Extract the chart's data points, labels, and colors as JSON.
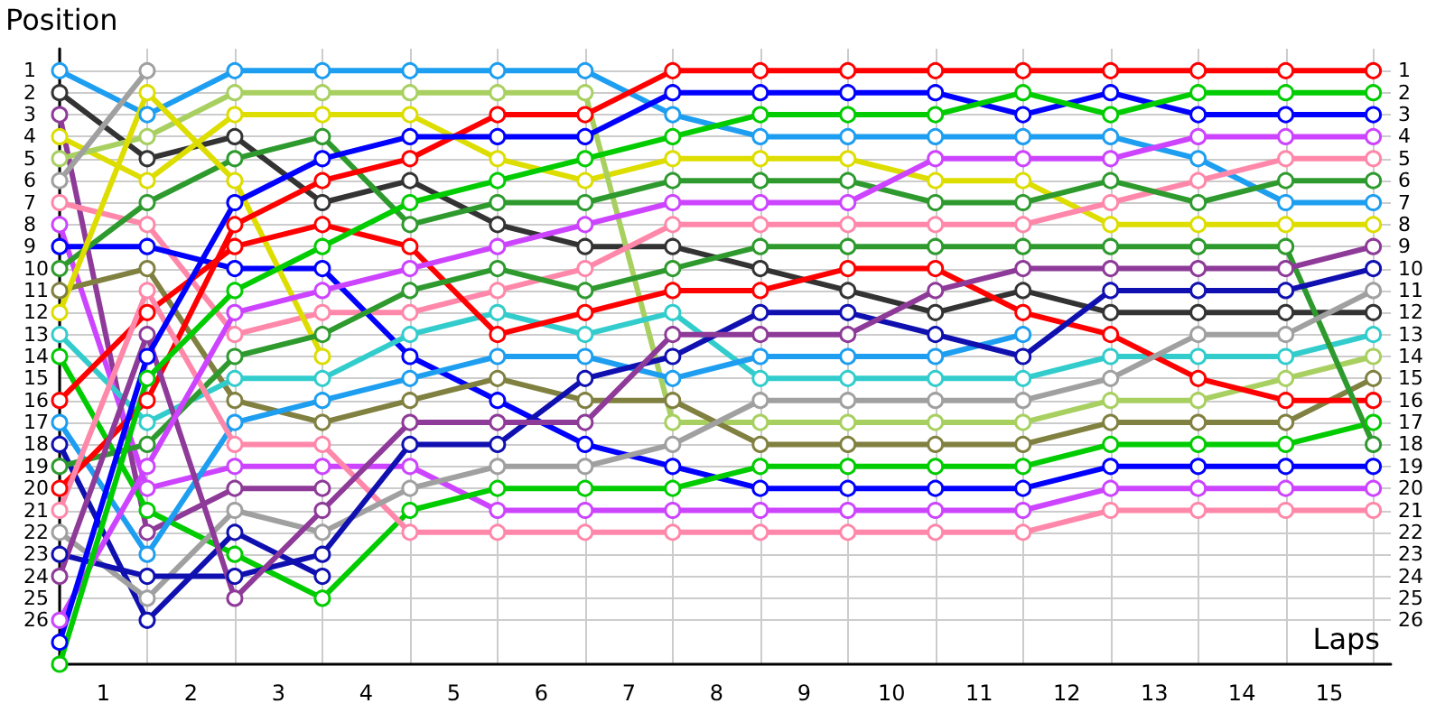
{
  "chart_data": {
    "type": "line",
    "xlabel": "Laps",
    "ylabel": "Position",
    "grid": true,
    "marker": "circle",
    "line_style": "solid",
    "x": [
      0,
      1,
      2,
      3,
      4,
      5,
      6,
      7,
      8,
      9,
      10,
      11,
      12,
      13,
      14,
      15
    ],
    "xlim": [
      0,
      15.2
    ],
    "xticks": [
      {
        "value": 0,
        "label": null
      },
      {
        "value": 0.5,
        "label": "1"
      },
      {
        "value": 1,
        "label": null
      },
      {
        "value": 1.5,
        "label": "2"
      },
      {
        "value": 2,
        "label": null
      },
      {
        "value": 2.5,
        "label": "3"
      },
      {
        "value": 3,
        "label": null
      },
      {
        "value": 3.5,
        "label": "4"
      },
      {
        "value": 4,
        "label": null
      },
      {
        "value": 4.5,
        "label": "5"
      },
      {
        "value": 5,
        "label": null
      },
      {
        "value": 5.5,
        "label": "6"
      },
      {
        "value": 6,
        "label": null
      },
      {
        "value": 6.5,
        "label": "7"
      },
      {
        "value": 7,
        "label": null
      },
      {
        "value": 7.5,
        "label": "8"
      },
      {
        "value": 8,
        "label": null
      },
      {
        "value": 8.5,
        "label": "9"
      },
      {
        "value": 9,
        "label": null
      },
      {
        "value": 9.5,
        "label": "10"
      },
      {
        "value": 10,
        "label": null
      },
      {
        "value": 10.5,
        "label": "11"
      },
      {
        "value": 11,
        "label": null
      },
      {
        "value": 11.5,
        "label": "12"
      },
      {
        "value": 12,
        "label": null
      },
      {
        "value": 12.5,
        "label": "13"
      },
      {
        "value": 13,
        "label": null
      },
      {
        "value": 13.5,
        "label": "14"
      },
      {
        "value": 14,
        "label": null
      },
      {
        "value": 14.5,
        "label": "15"
      },
      {
        "value": 15,
        "label": null
      }
    ],
    "ylim": [
      28,
      0
    ],
    "yticks": [
      1,
      2,
      3,
      4,
      5,
      6,
      7,
      8,
      9,
      10,
      11,
      12,
      13,
      14,
      15,
      16,
      17,
      18,
      19,
      20,
      21,
      22,
      23,
      24,
      25,
      26
    ],
    "y2lim": [
      28,
      0
    ],
    "y2ticks": [
      1,
      2,
      3,
      4,
      5,
      6,
      7,
      8,
      9,
      10,
      11,
      12,
      13,
      14,
      15,
      16,
      17,
      18,
      19,
      20,
      21,
      22,
      23,
      24,
      25,
      26
    ],
    "series": [
      {
        "color": "#1e9ef0",
        "values": [
          1,
          3,
          1,
          1,
          1,
          1,
          1,
          3,
          4,
          4,
          4,
          4,
          4,
          5,
          7,
          7
        ]
      },
      {
        "color": "#333333",
        "values": [
          2,
          5,
          4,
          7,
          6,
          8,
          9,
          9,
          10,
          11,
          12,
          11,
          12,
          12,
          12,
          12
        ]
      },
      {
        "color": "#8e3a98",
        "values": [
          3,
          22,
          20,
          20,
          null,
          null,
          null,
          null,
          null,
          null,
          null,
          null,
          null,
          null,
          null,
          null
        ]
      },
      {
        "color": "#dddd00",
        "values": [
          4,
          6,
          3,
          3,
          3,
          5,
          6,
          5,
          5,
          5,
          6,
          6,
          8,
          8,
          8,
          8
        ]
      },
      {
        "color": "#a8d060",
        "values": [
          5,
          4,
          2,
          2,
          2,
          2,
          2,
          17,
          17,
          17,
          17,
          17,
          16,
          16,
          15,
          14
        ]
      },
      {
        "color": "#a0a0a0",
        "values": [
          6,
          1,
          null,
          null,
          null,
          null,
          null,
          null,
          null,
          null,
          null,
          null,
          null,
          null,
          null,
          null
        ]
      },
      {
        "color": "#ff88aa",
        "values": [
          7,
          8,
          13,
          12,
          12,
          11,
          10,
          8,
          8,
          8,
          8,
          8,
          7,
          6,
          5,
          5
        ]
      },
      {
        "color": "#cc44ff",
        "values": [
          8,
          20,
          19,
          19,
          19,
          21,
          21,
          21,
          21,
          21,
          21,
          21,
          20,
          20,
          20,
          20
        ]
      },
      {
        "color": "#0000ff",
        "values": [
          9,
          9,
          10,
          10,
          14,
          16,
          18,
          19,
          20,
          20,
          20,
          20,
          19,
          19,
          19,
          19
        ]
      },
      {
        "color": "#2e9a2e",
        "values": [
          10,
          7,
          5,
          4,
          8,
          7,
          7,
          6,
          6,
          6,
          7,
          7,
          6,
          7,
          6,
          6
        ]
      },
      {
        "color": "#808040",
        "values": [
          11,
          10,
          16,
          17,
          16,
          15,
          16,
          16,
          18,
          18,
          18,
          18,
          17,
          17,
          17,
          15
        ]
      },
      {
        "color": "#dddd00",
        "values": [
          12,
          2,
          6,
          14,
          null,
          null,
          null,
          null,
          null,
          null,
          null,
          null,
          null,
          null,
          null,
          null
        ]
      },
      {
        "color": "#33cccc",
        "values": [
          13,
          17,
          15,
          15,
          13,
          12,
          13,
          12,
          15,
          15,
          15,
          15,
          14,
          14,
          14,
          13
        ]
      },
      {
        "color": "#00cc00",
        "values": [
          14,
          21,
          23,
          25,
          21,
          20,
          20,
          20,
          19,
          19,
          19,
          19,
          18,
          18,
          18,
          17
        ]
      },
      {
        "color": "#ff0000",
        "values": [
          16,
          12,
          9,
          8,
          9,
          13,
          12,
          11,
          11,
          10,
          10,
          12,
          13,
          15,
          16,
          16
        ]
      },
      {
        "color": "#1e9ef0",
        "values": [
          17,
          23,
          17,
          16,
          15,
          14,
          14,
          15,
          14,
          14,
          14,
          13,
          null,
          null,
          null,
          null
        ]
      },
      {
        "color": "#1010b0",
        "values": [
          18,
          26,
          22,
          24,
          null,
          null,
          null,
          null,
          null,
          null,
          null,
          null,
          null,
          null,
          null,
          null
        ]
      },
      {
        "color": "#2e9a2e",
        "values": [
          19,
          18,
          14,
          13,
          11,
          10,
          11,
          10,
          9,
          9,
          9,
          9,
          9,
          9,
          9,
          18
        ]
      },
      {
        "color": "#ff0000",
        "values": [
          20,
          16,
          8,
          6,
          5,
          3,
          3,
          1,
          1,
          1,
          1,
          1,
          1,
          1,
          1,
          1
        ]
      },
      {
        "color": "#ff88aa",
        "values": [
          21,
          11,
          18,
          18,
          22,
          22,
          22,
          22,
          22,
          22,
          22,
          22,
          21,
          21,
          21,
          21
        ]
      },
      {
        "color": "#a0a0a0",
        "values": [
          22,
          25,
          21,
          22,
          20,
          19,
          19,
          18,
          16,
          16,
          16,
          16,
          15,
          13,
          13,
          11
        ]
      },
      {
        "color": "#1010b0",
        "values": [
          23,
          24,
          24,
          23,
          18,
          18,
          15,
          14,
          12,
          12,
          13,
          14,
          11,
          11,
          11,
          10
        ]
      },
      {
        "color": "#8e3a98",
        "values": [
          24,
          13,
          25,
          21,
          17,
          17,
          17,
          13,
          13,
          13,
          11,
          10,
          10,
          10,
          10,
          9
        ]
      },
      {
        "color": "#cc44ff",
        "values": [
          26,
          19,
          12,
          11,
          10,
          9,
          8,
          7,
          7,
          7,
          5,
          5,
          5,
          4,
          4,
          4
        ]
      },
      {
        "color": "#0000ff",
        "values": [
          27,
          14,
          7,
          5,
          4,
          4,
          4,
          2,
          2,
          2,
          2,
          3,
          2,
          3,
          3,
          3
        ]
      },
      {
        "color": "#00cc00",
        "values": [
          28,
          15,
          11,
          9,
          7,
          6,
          5,
          4,
          3,
          3,
          3,
          2,
          3,
          2,
          2,
          2
        ]
      }
    ]
  }
}
